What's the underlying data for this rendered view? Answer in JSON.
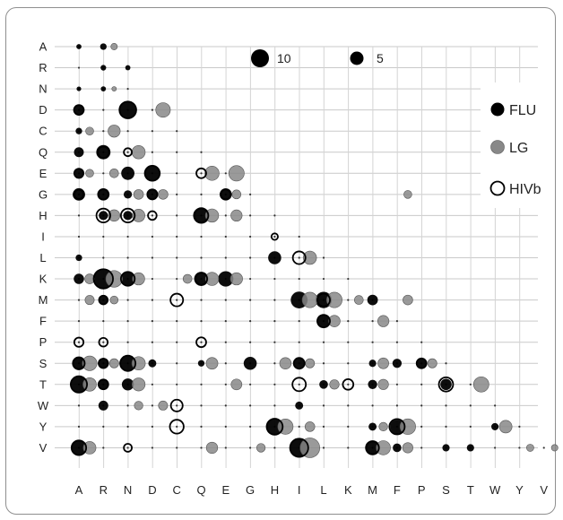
{
  "chart_data": {
    "type": "scatter",
    "subtype": "bubble-matrix",
    "title": "",
    "xlabel": "",
    "ylabel": "",
    "x_categories": [
      "A",
      "R",
      "N",
      "D",
      "C",
      "Q",
      "E",
      "G",
      "H",
      "I",
      "L",
      "K",
      "M",
      "F",
      "P",
      "S",
      "T",
      "W",
      "Y",
      "V"
    ],
    "y_categories": [
      "A",
      "R",
      "N",
      "D",
      "C",
      "Q",
      "E",
      "G",
      "H",
      "I",
      "L",
      "K",
      "M",
      "F",
      "P",
      "S",
      "T",
      "W",
      "Y",
      "V"
    ],
    "grid": true,
    "size_legend": [
      {
        "label": "10",
        "value": 10
      },
      {
        "label": "5",
        "value": 5
      }
    ],
    "legend_position": "right",
    "series": [
      {
        "name": "FLU",
        "color": "#000000",
        "style": "filled",
        "points": [
          [
            "A",
            "A",
            0.5
          ],
          [
            "R",
            "A",
            0.8
          ],
          [
            "R",
            "R",
            0.6
          ],
          [
            "N",
            "R",
            0.5
          ],
          [
            "A",
            "N",
            0.4
          ],
          [
            "R",
            "N",
            0.5
          ],
          [
            "A",
            "D",
            1.6
          ],
          [
            "N",
            "D",
            4.8
          ],
          [
            "A",
            "C",
            0.8
          ],
          [
            "A",
            "Q",
            1.8
          ],
          [
            "R",
            "Q",
            3.8
          ],
          [
            "A",
            "E",
            1.8
          ],
          [
            "N",
            "E",
            3.3
          ],
          [
            "D",
            "E",
            4.8
          ],
          [
            "A",
            "G",
            2.9
          ],
          [
            "R",
            "G",
            2.8
          ],
          [
            "N",
            "G",
            1.3
          ],
          [
            "D",
            "G",
            2.5
          ],
          [
            "E",
            "G",
            2.8
          ],
          [
            "R",
            "H",
            1.6
          ],
          [
            "N",
            "H",
            1.6
          ],
          [
            "Q",
            "H",
            5.0
          ],
          [
            "A",
            "L",
            0.8
          ],
          [
            "H",
            "L",
            3.2
          ],
          [
            "A",
            "K",
            2.0
          ],
          [
            "R",
            "K",
            7.3
          ],
          [
            "N",
            "K",
            3.3
          ],
          [
            "Q",
            "K",
            3.8
          ],
          [
            "E",
            "K",
            4.4
          ],
          [
            "R",
            "M",
            1.8
          ],
          [
            "I",
            "M",
            5.3
          ],
          [
            "L",
            "M",
            5.0
          ],
          [
            "M",
            "M",
            2.1
          ],
          [
            "L",
            "F",
            3.2
          ],
          [
            "A",
            "S",
            3.5
          ],
          [
            "R",
            "S",
            2.3
          ],
          [
            "N",
            "S",
            4.2
          ],
          [
            "D",
            "S",
            1.2
          ],
          [
            "Q",
            "S",
            0.8
          ],
          [
            "G",
            "S",
            3.2
          ],
          [
            "I",
            "S",
            2.4
          ],
          [
            "M",
            "S",
            1.0
          ],
          [
            "F",
            "S",
            1.6
          ],
          [
            "P",
            "S",
            1.6
          ],
          [
            "A",
            "T",
            4.4
          ],
          [
            "R",
            "T",
            1.5
          ],
          [
            "N",
            "T",
            2.7
          ],
          [
            "L",
            "T",
            1.4
          ],
          [
            "M",
            "T",
            1.6
          ],
          [
            "S",
            "T",
            2.4
          ],
          [
            "R",
            "W",
            1.8
          ],
          [
            "I",
            "W",
            1.2
          ],
          [
            "H",
            "Y",
            4.6
          ],
          [
            "F",
            "Y",
            3.6
          ],
          [
            "M",
            "Y",
            1.2
          ],
          [
            "A",
            "V",
            3.5
          ],
          [
            "I",
            "V",
            6.8
          ],
          [
            "M",
            "V",
            4.2
          ],
          [
            "F",
            "V",
            1.4
          ],
          [
            "W",
            "Y",
            1.0
          ],
          [
            "T",
            "V",
            1.0
          ],
          [
            "S",
            "V",
            1.0
          ]
        ]
      },
      {
        "name": "LG",
        "color": "#888888",
        "style": "filled",
        "points": [
          [
            "R",
            "A",
            0.8
          ],
          [
            "R",
            "N",
            0.4
          ],
          [
            "D",
            "D",
            4.0
          ],
          [
            "A",
            "C",
            1.2
          ],
          [
            "R",
            "C",
            2.8
          ],
          [
            "N",
            "Q",
            3.3
          ],
          [
            "E",
            "E",
            4.5
          ],
          [
            "Q",
            "E",
            3.8
          ],
          [
            "A",
            "E",
            1.2
          ],
          [
            "R",
            "E",
            1.5
          ],
          [
            "E",
            "G",
            1.5
          ],
          [
            "N",
            "G",
            1.8
          ],
          [
            "D",
            "G",
            1.8
          ],
          [
            "F",
            "G",
            1.2
          ],
          [
            "R",
            "H",
            2.5
          ],
          [
            "N",
            "H",
            3.0
          ],
          [
            "E",
            "H",
            2.4
          ],
          [
            "Q",
            "H",
            3.3
          ],
          [
            "I",
            "L",
            3.3
          ],
          [
            "A",
            "K",
            1.8
          ],
          [
            "R",
            "K",
            5.2
          ],
          [
            "N",
            "K",
            2.8
          ],
          [
            "E",
            "K",
            2.8
          ],
          [
            "Q",
            "K",
            3.3
          ],
          [
            "C",
            "K",
            1.5
          ],
          [
            "A",
            "M",
            1.6
          ],
          [
            "R",
            "M",
            1.2
          ],
          [
            "I",
            "M",
            4.5
          ],
          [
            "L",
            "M",
            4.5
          ],
          [
            "K",
            "M",
            1.5
          ],
          [
            "F",
            "M",
            1.8
          ],
          [
            "M",
            "F",
            2.4
          ],
          [
            "L",
            "F",
            2.5
          ],
          [
            "A",
            "S",
            4.0
          ],
          [
            "R",
            "S",
            1.6
          ],
          [
            "N",
            "S",
            3.4
          ],
          [
            "Q",
            "S",
            2.6
          ],
          [
            "H",
            "S",
            2.5
          ],
          [
            "I",
            "S",
            1.6
          ],
          [
            "M",
            "S",
            2.2
          ],
          [
            "P",
            "S",
            1.6
          ],
          [
            "A",
            "T",
            3.4
          ],
          [
            "N",
            "T",
            3.2
          ],
          [
            "E",
            "T",
            2.2
          ],
          [
            "L",
            "T",
            1.7
          ],
          [
            "T",
            "T",
            4.4
          ],
          [
            "M",
            "T",
            2.0
          ],
          [
            "D",
            "W",
            1.6
          ],
          [
            "N",
            "W",
            1.4
          ],
          [
            "H",
            "Y",
            4.4
          ],
          [
            "I",
            "Y",
            1.8
          ],
          [
            "F",
            "Y",
            4.6
          ],
          [
            "M",
            "Y",
            1.4
          ],
          [
            "W",
            "Y",
            3.0
          ],
          [
            "I",
            "V",
            7.3
          ],
          [
            "A",
            "V",
            3.0
          ],
          [
            "Q",
            "V",
            2.4
          ],
          [
            "M",
            "V",
            3.8
          ],
          [
            "F",
            "V",
            2.0
          ],
          [
            "G",
            "V",
            1.4
          ],
          [
            "Y",
            "V",
            1.0
          ],
          [
            "V",
            "V",
            0.8
          ]
        ]
      },
      {
        "name": "HIVb",
        "color": "#000000",
        "style": "hollow",
        "points": [
          [
            "A",
            "D",
            1.8
          ],
          [
            "N",
            "D",
            5.3
          ],
          [
            "R",
            "Q",
            2.4
          ],
          [
            "N",
            "Q",
            1.2
          ],
          [
            "A",
            "E",
            1.6
          ],
          [
            "D",
            "E",
            4.2
          ],
          [
            "Q",
            "E",
            1.8
          ],
          [
            "A",
            "G",
            1.6
          ],
          [
            "R",
            "G",
            2.0
          ],
          [
            "D",
            "G",
            1.8
          ],
          [
            "E",
            "G",
            1.8
          ],
          [
            "R",
            "H",
            3.6
          ],
          [
            "N",
            "H",
            3.6
          ],
          [
            "D",
            "H",
            1.4
          ],
          [
            "Q",
            "H",
            3.7
          ],
          [
            "H",
            "I",
            0.8
          ],
          [
            "I",
            "L",
            3.0
          ],
          [
            "R",
            "K",
            7.0
          ],
          [
            "N",
            "K",
            3.6
          ],
          [
            "Q",
            "K",
            2.6
          ],
          [
            "R",
            "M",
            1.4
          ],
          [
            "L",
            "M",
            3.0
          ],
          [
            "C",
            "M",
            3.0
          ],
          [
            "L",
            "F",
            3.0
          ],
          [
            "A",
            "P",
            1.6
          ],
          [
            "R",
            "P",
            1.4
          ],
          [
            "Q",
            "P",
            1.8
          ],
          [
            "A",
            "S",
            2.5
          ],
          [
            "N",
            "S",
            4.4
          ],
          [
            "R",
            "S",
            1.6
          ],
          [
            "I",
            "S",
            2.2
          ],
          [
            "P",
            "S",
            1.8
          ],
          [
            "A",
            "T",
            5.0
          ],
          [
            "R",
            "T",
            1.8
          ],
          [
            "I",
            "T",
            3.4
          ],
          [
            "K",
            "T",
            2.1
          ],
          [
            "S",
            "T",
            3.8
          ],
          [
            "C",
            "W",
            2.6
          ],
          [
            "C",
            "Y",
            3.6
          ],
          [
            "H",
            "Y",
            4.8
          ],
          [
            "F",
            "Y",
            4.4
          ],
          [
            "A",
            "V",
            4.0
          ],
          [
            "I",
            "V",
            6.2
          ],
          [
            "N",
            "V",
            1.2
          ],
          [
            "M",
            "V",
            3.0
          ]
        ]
      }
    ]
  }
}
